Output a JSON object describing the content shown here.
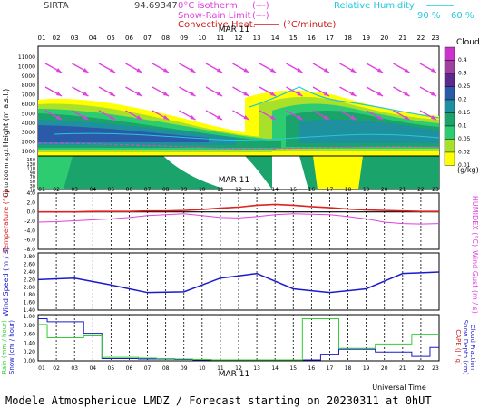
{
  "header": {
    "station": "SIRTA",
    "coords": "94.69347",
    "legend_isotherm": "0°C isotherm",
    "legend_snowrain": "Snow-Rain Limit",
    "legend_conv": "Convective Heat.",
    "legend_conv_unit": "(°C/minute)",
    "legend_rh": "Relative Humidity",
    "rh_90": "90 %",
    "rh_60": "60 %",
    "isotherm_dash": "(---)",
    "snowrain_dash": "(---)"
  },
  "date_label": "MAR 11",
  "hours": [
    "01",
    "02",
    "03",
    "04",
    "05",
    "06",
    "07",
    "08",
    "09",
    "10",
    "11",
    "12",
    "13",
    "14",
    "15",
    "16",
    "17",
    "18",
    "19",
    "20",
    "21",
    "22",
    "23"
  ],
  "clouds": {
    "title": "Clouds",
    "unit": "(g/kg)",
    "levels": [
      "0.4",
      "0.3",
      "0.25",
      "0.2",
      "0.15",
      "0.1",
      "0.05",
      "0.02",
      "0.01"
    ],
    "colors": [
      "#cc33cc",
      "#a040a0",
      "#5c2a8c",
      "#2b5aa8",
      "#1e90a0",
      "#1aa36a",
      "#2ecc71",
      "#a9e02a",
      "#ffff00"
    ],
    "ylabel": "Height (m a.s.l.)",
    "ylabel2": "Up to 200 m a.g.l.",
    "y_ticks": [
      "11000",
      "10000",
      "9000",
      "8000",
      "7000",
      "6000",
      "5000",
      "4000",
      "3000",
      "2000",
      "1000"
    ],
    "y_ticks_low": [
      "150",
      "140",
      "130",
      "120",
      "110",
      "100",
      "90",
      "80",
      "70",
      "60",
      "50",
      "40",
      "30",
      "20",
      "10"
    ]
  },
  "temperature": {
    "ylabel": "Temperature (°C)",
    "ylabel_right": "HUMIDEX (°C)",
    "y_ticks": [
      "4.0",
      "2.0",
      "0.0",
      "-2.0",
      "-4.0",
      "-6.0",
      "-8.0"
    ],
    "temp": [
      0.0,
      0.0,
      0.0,
      0.1,
      0.1,
      0.1,
      0.2,
      0.2,
      0.3,
      0.5,
      0.8,
      1.0,
      1.4,
      1.6,
      1.4,
      1.1,
      0.9,
      0.6,
      0.4,
      0.3,
      0.2,
      0.1,
      0.1
    ],
    "humidex": [
      -2.2,
      -2.1,
      -1.9,
      -1.7,
      -1.5,
      -1.2,
      -0.8,
      -0.6,
      -0.4,
      -0.8,
      -1.2,
      -1.3,
      -1.0,
      -0.6,
      -0.4,
      -0.5,
      -0.6,
      -1.0,
      -1.5,
      -2.2,
      -2.5,
      -2.6,
      -2.5
    ]
  },
  "wind": {
    "ylabel": "Wind Speed (m / s)",
    "ylabel_right": "Wind Gust (m / s)",
    "y_ticks": [
      "2.80",
      "2.60",
      "2.40",
      "2.20",
      "2.00",
      "1.80",
      "1.60",
      "1.40"
    ],
    "speed": [
      2.2,
      2.22,
      2.24,
      2.15,
      2.06,
      1.96,
      1.86,
      1.87,
      1.88,
      2.06,
      2.24,
      2.3,
      2.36,
      2.16,
      1.96,
      1.91,
      1.86,
      1.91,
      1.96,
      2.16,
      2.36,
      2.38,
      2.4
    ]
  },
  "precip": {
    "ylabel1": "Rain (mm / hour)",
    "ylabel2": "Snow (cm / hour)",
    "ylabel_right1": "CAPE (J / g)",
    "ylabel_right2": "Snow Depth (cm)",
    "ylabel_right3": "Cloud Fraction",
    "y_ticks": [
      "1.00",
      "0.80",
      "0.60",
      "0.40",
      "0.20",
      "0.00"
    ],
    "rain": [
      0.82,
      0.52,
      0.52,
      0.56,
      0.08,
      0.08,
      0.06,
      0.05,
      0.04,
      0.03,
      0.02,
      0.02,
      0.02,
      0.02,
      0.02,
      0.95,
      0.95,
      0.28,
      0.28,
      0.38,
      0.38,
      0.6,
      0.6
    ],
    "cloud_fraction": [
      0.95,
      0.88,
      0.88,
      0.62,
      0.05,
      0.05,
      0.04,
      0.04,
      0.03,
      0.02,
      0.02,
      0.02,
      0.02,
      0.02,
      0.02,
      0.02,
      0.15,
      0.26,
      0.26,
      0.2,
      0.2,
      0.1,
      0.3
    ]
  },
  "footer": {
    "model": "Modele Atmospherique LMDZ / Forecast starting on 20230311 at 0hUT",
    "time_axis": "Universal Time"
  }
}
